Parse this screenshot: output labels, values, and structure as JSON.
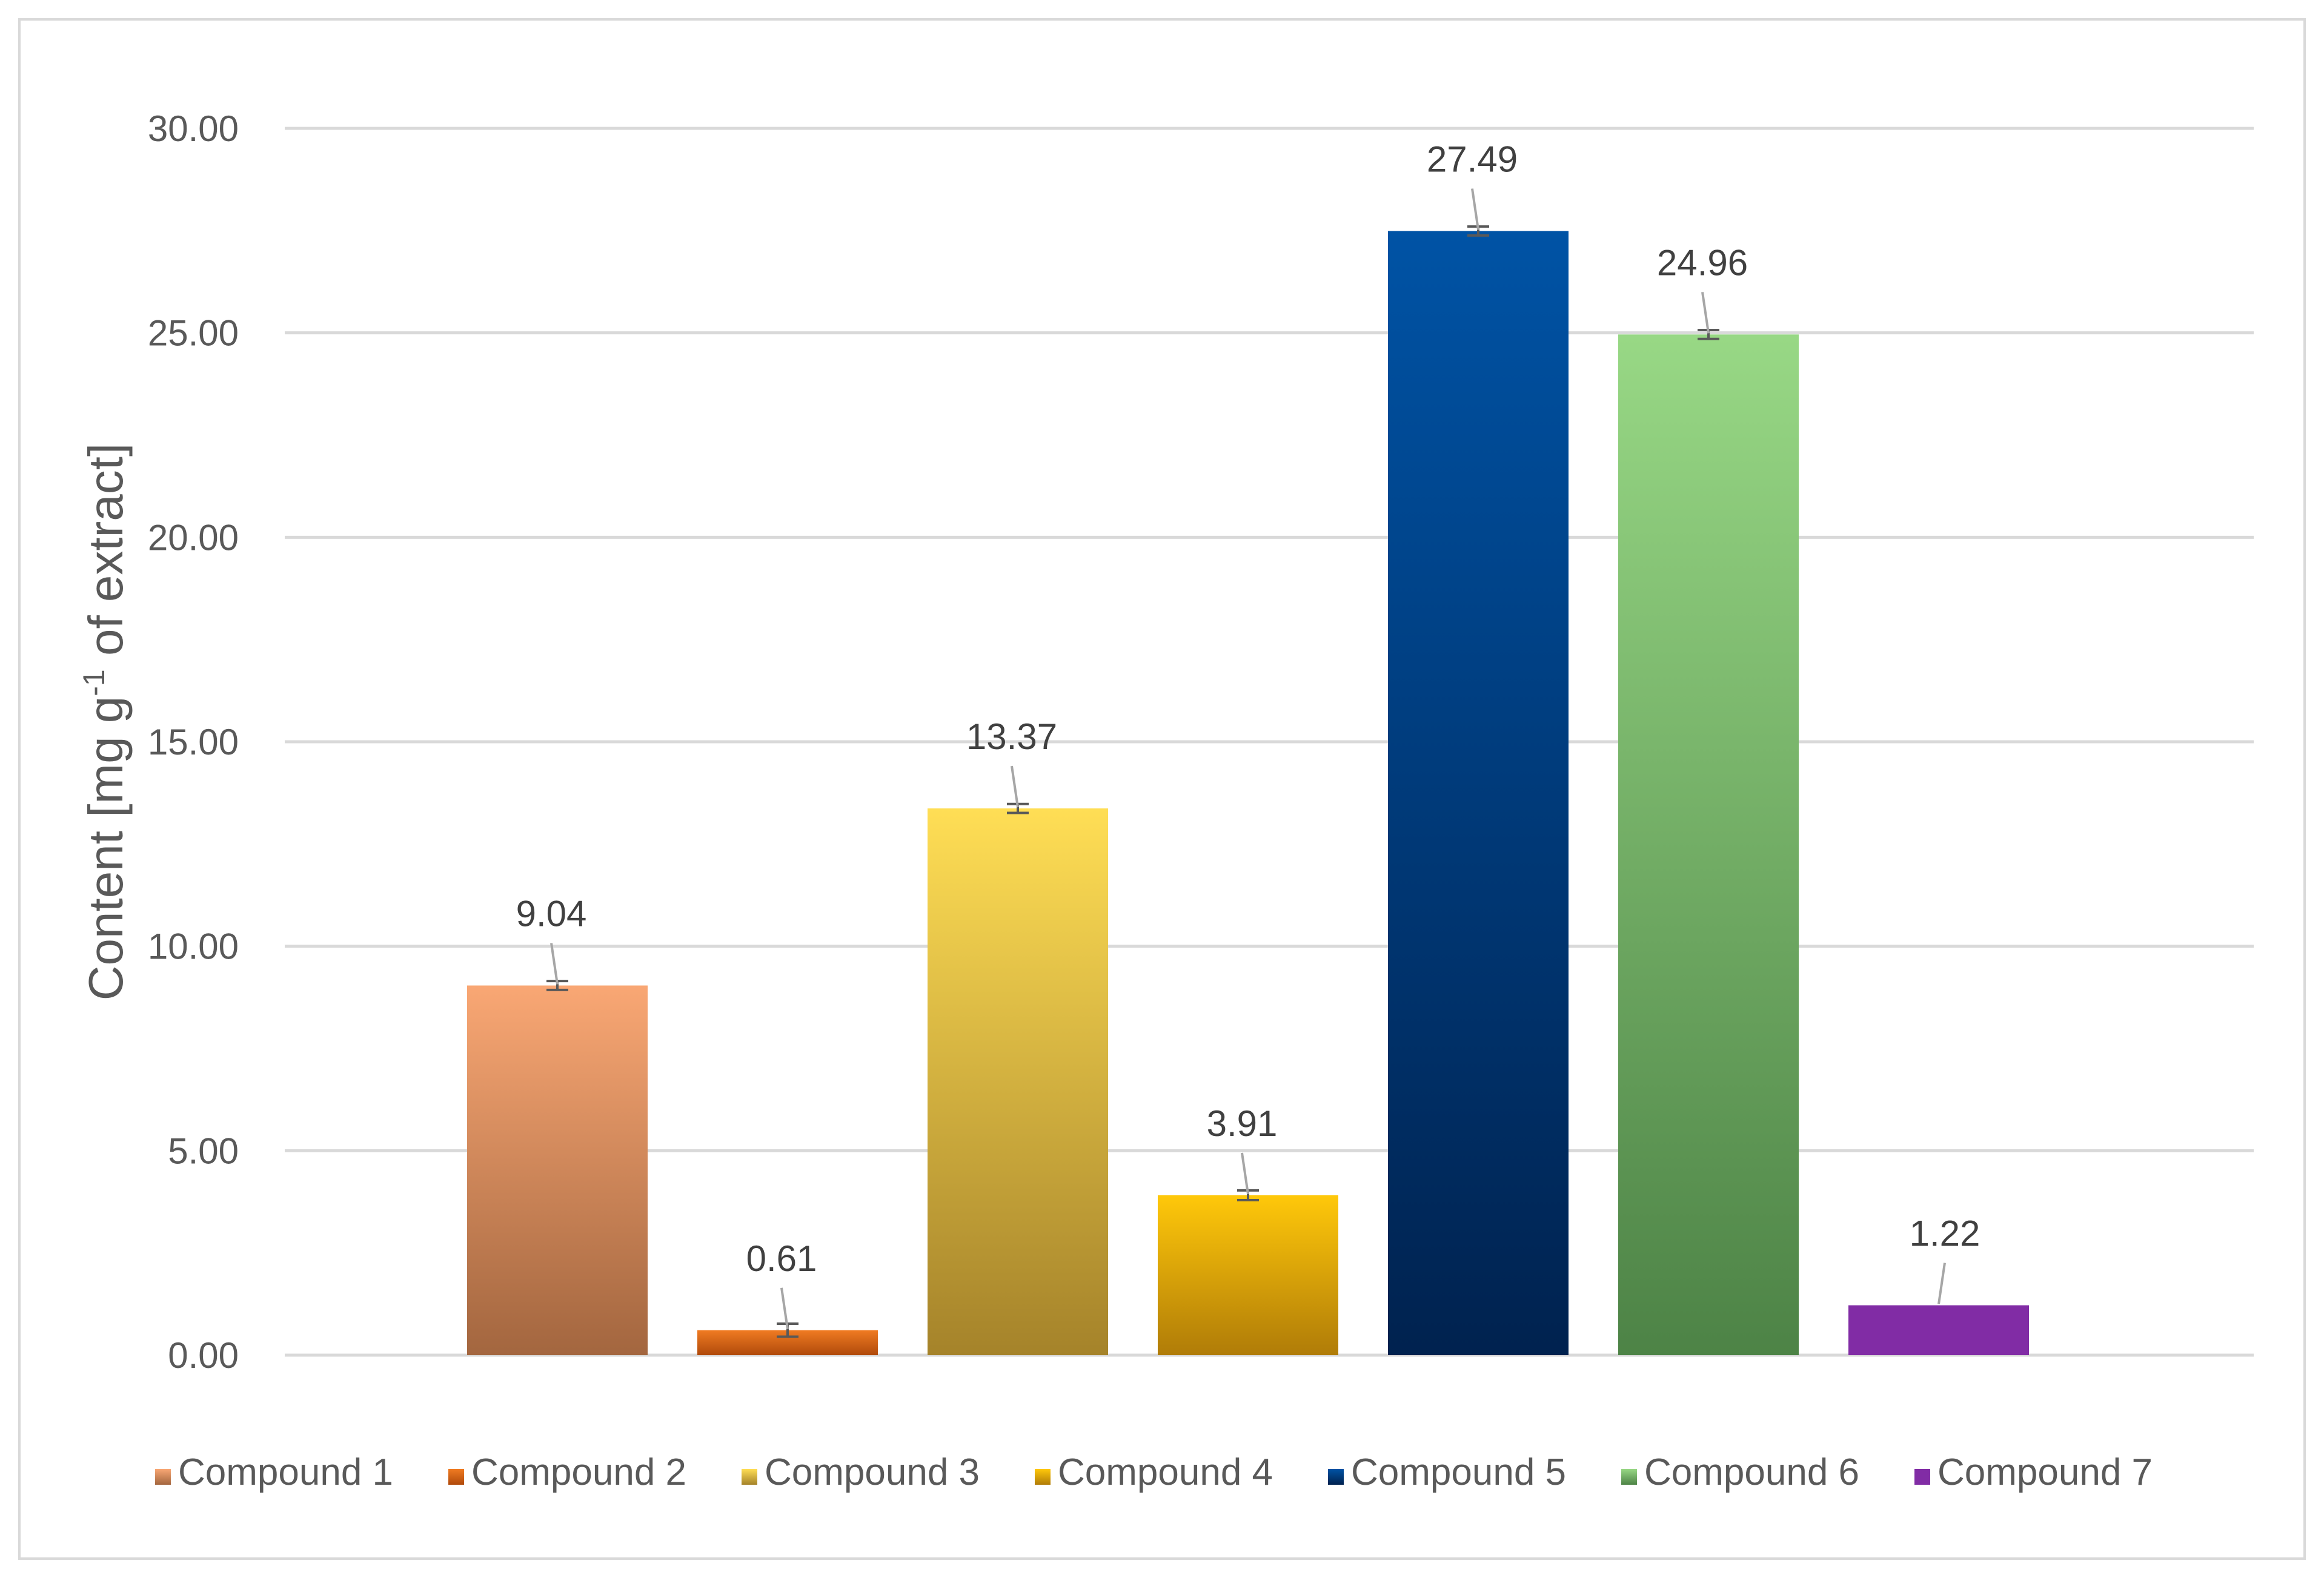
{
  "chart_data": {
    "type": "bar",
    "title": "",
    "xlabel": "",
    "ylabel": "Content [mg g-1 of extract]",
    "ylabel_parts": {
      "main": "Content [mg g",
      "superscript": "-1",
      "tail": " of extract]"
    },
    "ylim": [
      0,
      30
    ],
    "yticks": [
      0,
      5,
      10,
      15,
      20,
      25,
      30
    ],
    "ytick_labels": [
      "0.00",
      "5.00",
      "10.00",
      "15.00",
      "20.00",
      "25.00",
      "30.00"
    ],
    "grid": true,
    "legend_position": "bottom",
    "series": [
      {
        "name": "Compound 1",
        "value": 9.04,
        "label": "9.04",
        "error": 0.05,
        "color_top": "#f9a774",
        "color_bottom": "#a3663f"
      },
      {
        "name": "Compound 2",
        "value": 0.61,
        "label": "0.61",
        "error": 0.1,
        "color_top": "#f07b22",
        "color_bottom": "#b04a0b"
      },
      {
        "name": "Compound 3",
        "value": 13.37,
        "label": "13.37",
        "error": 0.05,
        "color_top": "#ffde55",
        "color_bottom": "#a5832a"
      },
      {
        "name": "Compound 4",
        "value": 3.91,
        "label": "3.91",
        "error": 0.06,
        "color_top": "#ffc80a",
        "color_bottom": "#b07c08"
      },
      {
        "name": "Compound 5",
        "value": 27.49,
        "label": "27.49",
        "error": 0.05,
        "color_top": "#0053a5",
        "color_bottom": "#00224f"
      },
      {
        "name": "Compound 6",
        "value": 24.96,
        "label": "24.96",
        "error": 0.05,
        "color_top": "#98d885",
        "color_bottom": "#4d8346"
      },
      {
        "name": "Compound 7",
        "value": 1.22,
        "label": "1.22",
        "error": 0.0,
        "color_top": "#812ca5",
        "color_bottom": "#812ca5"
      }
    ],
    "colors": {
      "gridline": "#d9d9d9",
      "errorbar": "#595959",
      "leader_line": "#a6a6a6"
    }
  }
}
